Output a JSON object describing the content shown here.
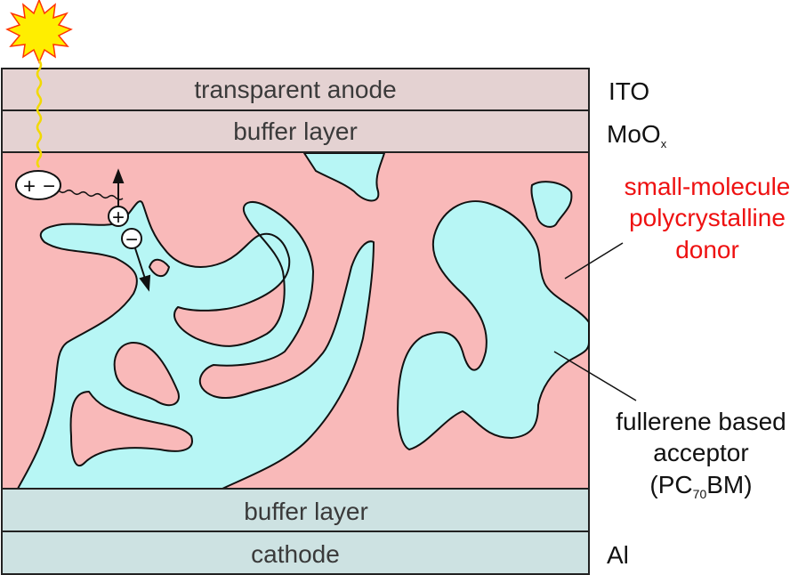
{
  "layers": {
    "anode": "transparent anode",
    "buffer_top": "buffer layer",
    "buffer_bottom": "buffer layer",
    "cathode": "cathode"
  },
  "materials": {
    "ito": "ITO",
    "moox_base": "MoO",
    "moox_sub": "x",
    "donor_line1": "small-molecule",
    "donor_line2": "polycrystalline",
    "donor_line3": "donor",
    "acceptor_line1": "fullerene based",
    "acceptor_line2": "acceptor",
    "acceptor_line3_open": "(PC",
    "acceptor_line3_sub": "70",
    "acceptor_line3_close": "BM)",
    "al": "Al"
  },
  "exciton": {
    "plus": "+",
    "minus": "−"
  },
  "charges": {
    "hole": "+",
    "electron": "−"
  },
  "colors": {
    "top_layers": "#e4d2d2",
    "active_layer": "#f9b9b9",
    "acceptor": "#b7f6f5",
    "bottom_layers": "#cde2e2",
    "donor_text": "#ee1111",
    "sun": "#ffee00"
  },
  "icons": {
    "sun": "sun-burst-icon",
    "light_ray": "wavy-light-ray"
  }
}
